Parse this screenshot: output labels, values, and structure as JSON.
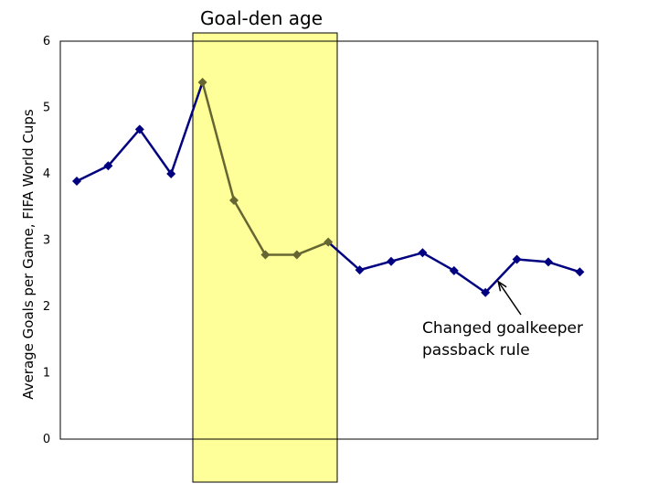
{
  "chart_data": {
    "type": "line",
    "title": "Goal-den age",
    "ylabel": "Average Goals per Game, FIFA World Cups",
    "xlabel": "",
    "ylim": [
      0,
      6
    ],
    "yticks": [
      "0",
      "1",
      "2",
      "3",
      "4",
      "5",
      "6"
    ],
    "grid": false,
    "series": [
      {
        "values": [
          3.89,
          4.12,
          4.67,
          4.0,
          5.38,
          3.6,
          2.78,
          2.78,
          2.97,
          2.55,
          2.68,
          2.81,
          2.54,
          2.21,
          2.71,
          2.67,
          2.52
        ]
      }
    ],
    "highlight": {
      "from_index": 4,
      "to_index": 8,
      "label": "Goal-den age",
      "color": "#ffff99"
    },
    "annotations": [
      {
        "text_lines": [
          "Changed goalkeeper",
          "passback rule"
        ],
        "points_to_index": 13
      }
    ],
    "colors": {
      "line": "#000080",
      "line_highlighted": "#666633",
      "marker": "#000080",
      "marker_highlighted": "#666633"
    }
  }
}
